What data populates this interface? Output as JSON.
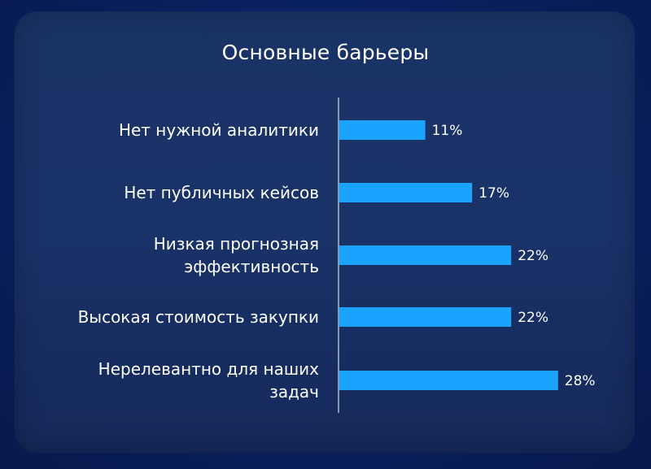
{
  "chart_data": {
    "type": "bar",
    "orientation": "horizontal",
    "title": "Основные барьеры",
    "categories": [
      [
        "Нет нужной аналитики"
      ],
      [
        "Нет публичных кейсов"
      ],
      [
        "Низкая прогнозная",
        "эффективность"
      ],
      [
        "Высокая стоимость закупки"
      ],
      [
        "Нерелевантно для наших",
        "задач"
      ]
    ],
    "values": [
      11,
      17,
      22,
      22,
      28
    ],
    "value_labels": [
      "11%",
      "17%",
      "22%",
      "22%",
      "28%"
    ],
    "xlim": [
      0,
      30
    ],
    "grid": false,
    "legend": "none",
    "colors": {
      "bar": "#1aa3ff",
      "axis": "#ffffff",
      "text": "#ffffff"
    }
  }
}
